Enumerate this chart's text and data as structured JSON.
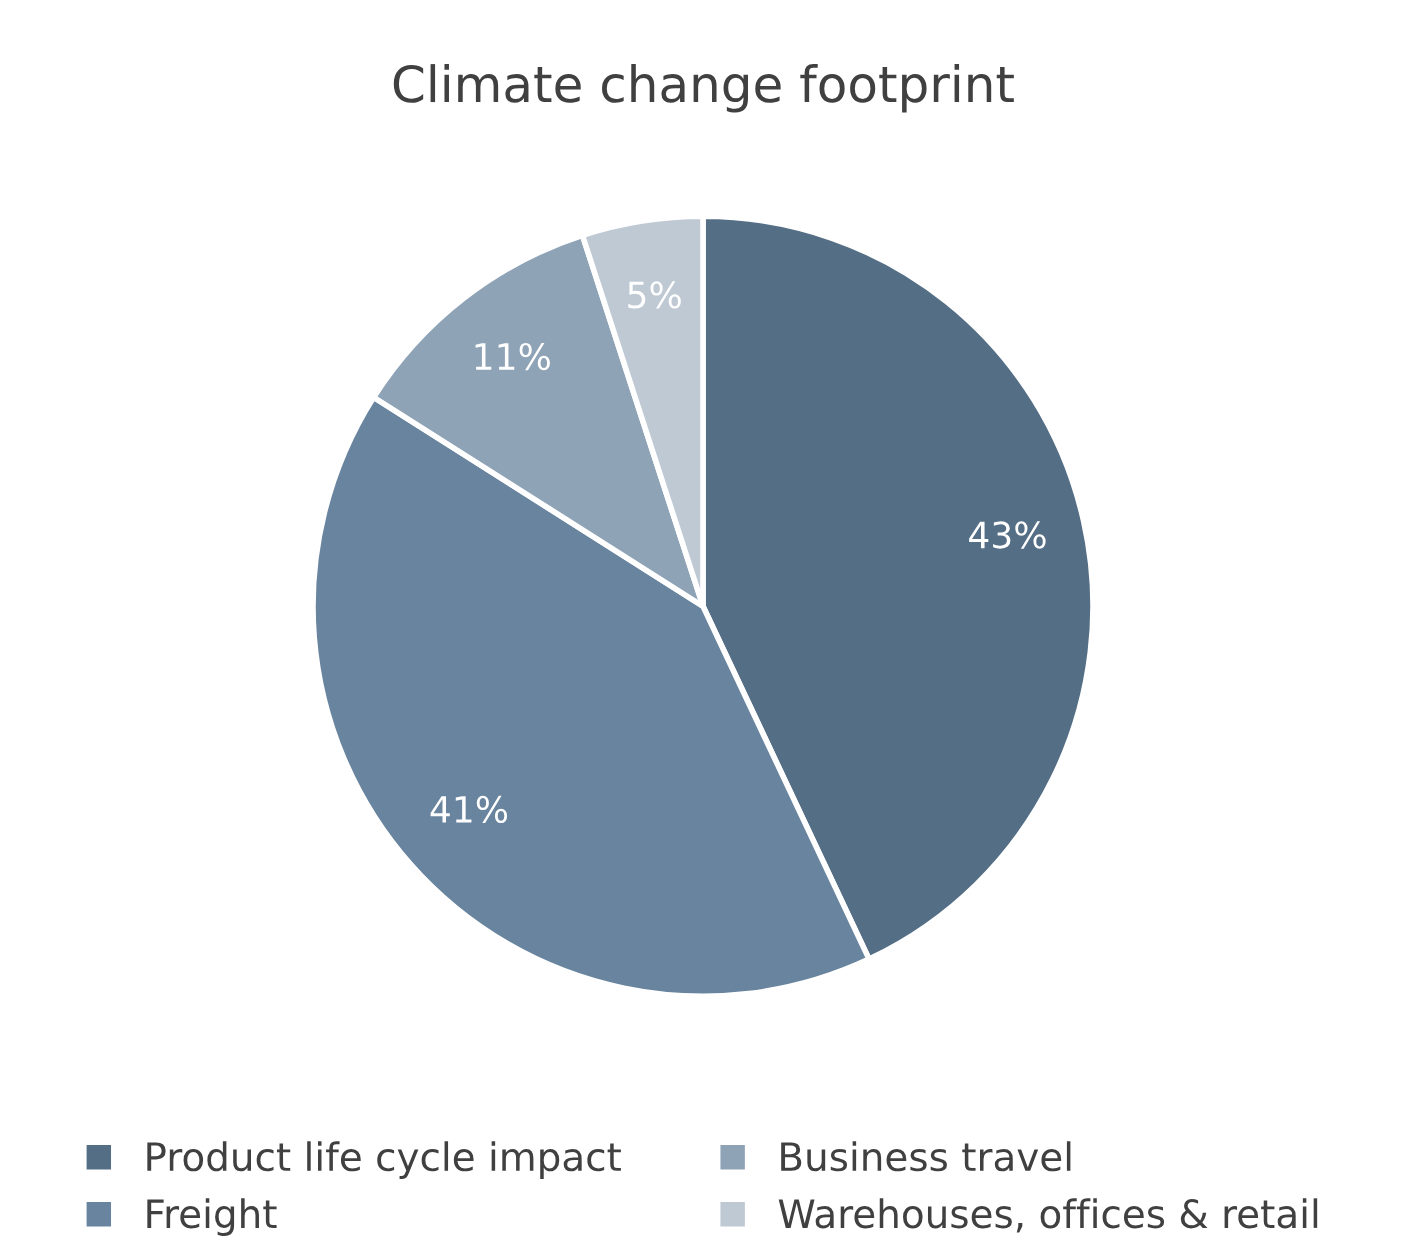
{
  "chart_data": {
    "type": "pie",
    "title": "Climate change footprint",
    "categories": [
      "Product life cycle impact",
      "Freight",
      "Business travel",
      "Warehouses, offices & retail"
    ],
    "values": [
      43,
      41,
      11,
      5
    ],
    "value_labels": [
      "43%",
      "41%",
      "11%",
      "5%"
    ],
    "colors": [
      "#546e85",
      "#68849e",
      "#8fa3b7",
      "#bfc9d4"
    ],
    "legend": "bottom"
  }
}
